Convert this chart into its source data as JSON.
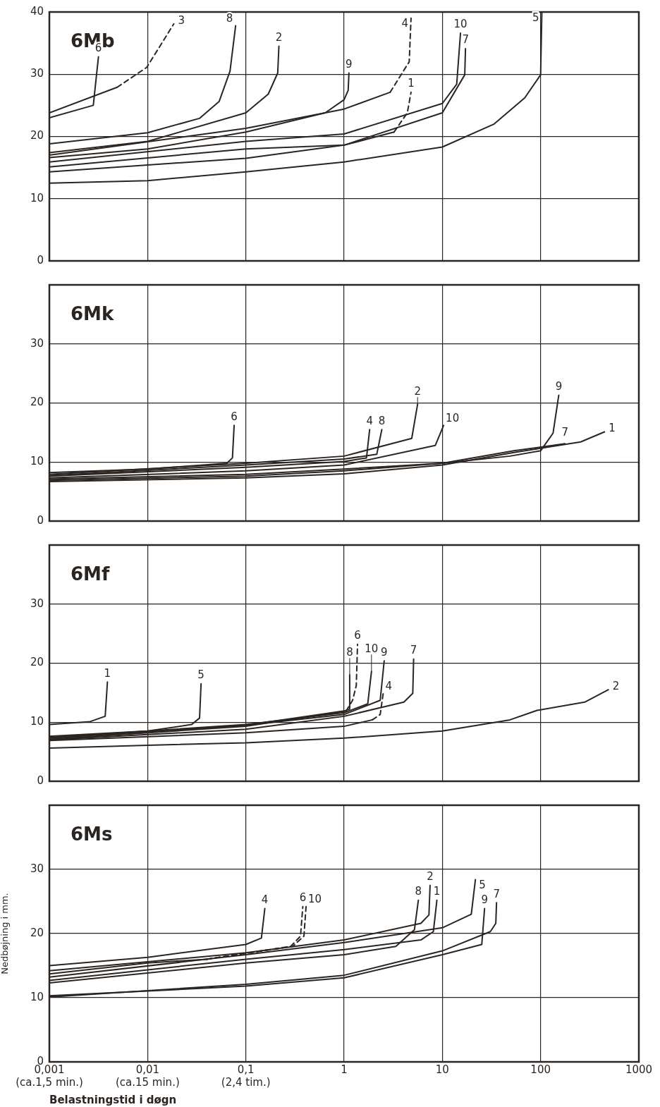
{
  "chart_data": [
    {
      "type": "line",
      "title": "6Mb",
      "log": "x",
      "grid": true,
      "tick_labels": "y",
      "marker": "none",
      "xlim": [
        0.001,
        1000
      ],
      "ylim": [
        0,
        40
      ],
      "xticks": [
        0.001,
        0.01,
        0.1,
        1,
        10,
        100,
        1000
      ],
      "yticks": [
        0,
        10,
        20,
        30,
        40
      ],
      "series": [
        {
          "name": "6",
          "color": "#2b2522",
          "line_style": "solid",
          "x": [
            0.001,
            0.0028,
            0.00316
          ],
          "values": [
            23.0,
            25.0,
            32.8
          ]
        },
        {
          "color": "#2b2522",
          "line_style": "solid",
          "x": [
            0.001,
            0.0049
          ],
          "values": [
            23.8,
            27.9
          ]
        },
        {
          "name": "3",
          "color": "#2b2522",
          "line_style": "dashed",
          "x": [
            0.0049,
            0.0098,
            0.0185
          ],
          "values": [
            27.9,
            31.1,
            38.1
          ]
        },
        {
          "name": "8",
          "color": "#2b2522",
          "line_style": "solid",
          "x": [
            0.001,
            0.01,
            0.0337,
            0.0534,
            0.069,
            0.0787
          ],
          "values": [
            18.8,
            20.6,
            22.9,
            25.6,
            30.5,
            37.8
          ]
        },
        {
          "name": "2",
          "color": "#2b2522",
          "line_style": "solid",
          "x": [
            0.001,
            0.01,
            0.1,
            0.169,
            0.211,
            0.217
          ],
          "values": [
            17.4,
            19.2,
            23.8,
            26.8,
            30.2,
            34.5
          ]
        },
        {
          "name": "9",
          "color": "#2b2522",
          "line_style": "solid",
          "x": [
            0.001,
            0.01,
            0.1,
            0.643,
            1.0,
            1.1,
            1.12
          ],
          "values": [
            16.6,
            18.0,
            20.7,
            23.8,
            25.9,
            27.4,
            30.2
          ]
        },
        {
          "color": "#2b2522",
          "line_style": "solid",
          "x": [
            0.001,
            0.1,
            1,
            2.94
          ],
          "values": [
            17.0,
            21.3,
            24.4,
            27.1
          ]
        },
        {
          "name": "4",
          "color": "#2b2522",
          "line_style": "dashed",
          "x": [
            2.94,
            4.6,
            4.8
          ],
          "values": [
            27.1,
            32.0,
            39.0
          ]
        },
        {
          "name": "10",
          "color": "#2b2522",
          "line_style": "solid",
          "x": [
            0.001,
            0.1,
            1,
            10,
            14.0,
            15.3
          ],
          "values": [
            15.9,
            19.2,
            20.4,
            25.3,
            28.4,
            36.6
          ]
        },
        {
          "name": "7",
          "color": "#2b2522",
          "line_style": "solid",
          "x": [
            0.001,
            0.1,
            1,
            10,
            16.9,
            17.2
          ],
          "values": [
            15.1,
            18.0,
            18.6,
            23.8,
            29.9,
            34.1
          ]
        },
        {
          "color": "#2b2522",
          "line_style": "solid",
          "x": [
            0.001,
            0.1,
            1,
            3.22
          ],
          "values": [
            14.3,
            16.5,
            18.6,
            20.7
          ]
        },
        {
          "name": "1",
          "color": "#2b2522",
          "line_style": "dashed",
          "x": [
            3.22,
            4.4,
            4.8
          ],
          "values": [
            20.7,
            23.8,
            27.1
          ]
        },
        {
          "name": "5",
          "color": "#2b2522",
          "line_style": "solid",
          "x": [
            0.001,
            0.01,
            0.1,
            1,
            10,
            33.7,
            69,
            100,
            103
          ],
          "values": [
            12.5,
            12.9,
            14.3,
            15.9,
            18.3,
            22.0,
            26.2,
            29.9,
            39.9
          ]
        }
      ]
    },
    {
      "type": "line",
      "title": "6Mk",
      "log": "x",
      "grid": true,
      "tick_labels": "y",
      "marker": "none",
      "xlim": [
        0.001,
        1000
      ],
      "ylim": [
        0,
        40
      ],
      "xticks": [
        0.001,
        0.01,
        0.1,
        1,
        10,
        100,
        1000
      ],
      "yticks": [
        0,
        10,
        20,
        30
      ],
      "series": [
        {
          "name": "6",
          "color": "#2b2522",
          "line_style": "solid",
          "x": [
            0.001,
            0.01,
            0.064,
            0.073,
            0.076
          ],
          "values": [
            8.2,
            8.8,
            9.8,
            10.7,
            16.2
          ]
        },
        {
          "name": "2",
          "color": "#2b2522",
          "line_style": "solid",
          "x": [
            0.001,
            0.1,
            1,
            4.88,
            5.6
          ],
          "values": [
            7.9,
            9.8,
            11.0,
            14.0,
            19.8
          ]
        },
        {
          "name": "4",
          "color": "#2b2522",
          "line_style": "solid",
          "x": [
            0.001,
            0.1,
            1,
            1.69,
            1.82
          ],
          "values": [
            7.6,
            9.1,
            10.1,
            10.7,
            15.5
          ]
        },
        {
          "name": "8",
          "color": "#2b2522",
          "line_style": "solid",
          "x": [
            0.001,
            0.1,
            1,
            2.15,
            2.42
          ],
          "values": [
            7.7,
            9.5,
            10.5,
            11.3,
            15.5
          ]
        },
        {
          "name": "10",
          "color": "#2b2522",
          "line_style": "solid",
          "x": [
            0.001,
            0.1,
            1,
            8.47,
            10.3
          ],
          "values": [
            7.3,
            8.5,
            9.5,
            12.8,
            16.2
          ]
        },
        {
          "name": "1",
          "color": "#2b2522",
          "line_style": "solid",
          "x": [
            0.001,
            0.1,
            1,
            10,
            53.5,
            256,
            447
          ],
          "values": [
            6.7,
            7.3,
            8.0,
            9.5,
            11.6,
            13.4,
            15.1
          ]
        },
        {
          "name": "7",
          "color": "#2b2522",
          "line_style": "solid",
          "x": [
            0.001,
            0.1,
            1,
            10,
            53.5,
            177
          ],
          "values": [
            6.9,
            7.6,
            8.5,
            9.8,
            11.9,
            13.1
          ]
        },
        {
          "name": "9",
          "color": "#2b2522",
          "line_style": "solid",
          "x": [
            0.001,
            0.1,
            1,
            10,
            48.8,
            100,
            134,
            153
          ],
          "values": [
            7.1,
            7.9,
            8.8,
            9.8,
            11.0,
            11.9,
            14.9,
            21.3
          ]
        }
      ]
    },
    {
      "type": "line",
      "title": "6Mf",
      "log": "x",
      "grid": true,
      "tick_labels": "y",
      "marker": "none",
      "xlim": [
        0.001,
        1000
      ],
      "ylim": [
        0,
        40
      ],
      "xticks": [
        0.001,
        0.01,
        0.1,
        1,
        10,
        100,
        1000
      ],
      "yticks": [
        0,
        10,
        20,
        30
      ],
      "series": [
        {
          "name": "1",
          "color": "#2b2522",
          "line_style": "solid",
          "x": [
            0.001,
            0.0026,
            0.0037,
            0.0039
          ],
          "values": [
            9.6,
            10.1,
            11.0,
            16.8
          ]
        },
        {
          "name": "5",
          "color": "#2b2522",
          "line_style": "solid",
          "x": [
            0.001,
            0.01,
            0.028,
            0.0338,
            0.035
          ],
          "values": [
            7.6,
            8.5,
            9.6,
            10.7,
            16.5
          ]
        },
        {
          "name": "8",
          "color": "#2b2522",
          "line_style": "solid",
          "x": [
            0.001,
            0.1,
            1,
            1.13,
            1.14
          ],
          "values": [
            7.3,
            9.5,
            11.9,
            12.2,
            18.0
          ]
        },
        {
          "color": "#2b2522",
          "line_style": "solid",
          "x": [
            0.001,
            0.1,
            1.05
          ],
          "values": [
            7.1,
            9.3,
            11.9
          ]
        },
        {
          "name": "6",
          "color": "#2b2522",
          "line_style": "dashed",
          "x": [
            1.05,
            1.22,
            1.33,
            1.37
          ],
          "values": [
            11.9,
            13.7,
            16.2,
            23.2
          ]
        },
        {
          "name": "10",
          "color": "#2b2522",
          "line_style": "solid",
          "x": [
            0.001,
            0.1,
            1,
            1.74,
            1.9
          ],
          "values": [
            7.4,
            9.6,
            11.6,
            13.1,
            18.6
          ]
        },
        {
          "name": "9",
          "color": "#2b2522",
          "line_style": "solid",
          "x": [
            0.001,
            0.1,
            1,
            2.33,
            2.56
          ],
          "values": [
            7.3,
            9.5,
            11.3,
            13.7,
            20.4
          ]
        },
        {
          "name": "7",
          "color": "#2b2522",
          "line_style": "solid",
          "x": [
            0.001,
            0.1,
            1,
            4.06,
            5.0,
            5.1
          ],
          "values": [
            7.0,
            8.8,
            11.0,
            13.4,
            14.9,
            20.7
          ]
        },
        {
          "color": "#2b2522",
          "line_style": "solid",
          "x": [
            0.001,
            0.1,
            1,
            1.94
          ],
          "values": [
            6.9,
            8.2,
            9.3,
            10.4
          ]
        },
        {
          "name": "4",
          "color": "#2b2522",
          "line_style": "dashed",
          "x": [
            1.94,
            2.33,
            2.5
          ],
          "values": [
            10.4,
            11.3,
            14.9
          ]
        },
        {
          "name": "2",
          "color": "#2b2522",
          "line_style": "solid",
          "x": [
            0.001,
            0.01,
            0.1,
            1,
            10,
            48.8,
            92,
            281,
            490
          ],
          "values": [
            5.6,
            6.1,
            6.5,
            7.3,
            8.5,
            10.4,
            12.0,
            13.4,
            15.5
          ]
        }
      ]
    },
    {
      "type": "line",
      "title": "6Ms",
      "xlabel": "Belastningstid i døgn",
      "ylabel": "Nedbøjning i mm.",
      "log": "x",
      "grid": true,
      "marker": "none",
      "xlim": [
        0.001,
        1000
      ],
      "ylim": [
        0,
        40
      ],
      "xticks": [
        {
          "value": 0.001,
          "label": "0,001\n(ca.1,5 min.)"
        },
        {
          "value": 0.01,
          "label": "0,01\n(ca.15 min.)"
        },
        {
          "value": 0.1,
          "label": "0,1\n(2,4 tim.)"
        },
        {
          "value": 1,
          "label": "1"
        },
        {
          "value": 10,
          "label": "10"
        },
        {
          "value": 100,
          "label": "100"
        },
        {
          "value": 1000,
          "label": "1000"
        }
      ],
      "yticks": [
        0,
        10,
        20,
        30
      ],
      "series": [
        {
          "name": "4",
          "color": "#2b2522",
          "line_style": "solid",
          "x": [
            0.001,
            0.01,
            0.1,
            0.144,
            0.156
          ],
          "values": [
            15.0,
            16.3,
            18.3,
            19.3,
            23.9
          ]
        },
        {
          "name": "2",
          "color": "#2b2522",
          "line_style": "solid",
          "x": [
            0.001,
            0.1,
            1,
            6.05,
            7.3,
            7.5
          ],
          "values": [
            14.2,
            17.0,
            19.0,
            21.6,
            22.9,
            27.5
          ]
        },
        {
          "color": "#2b2522",
          "line_style": "solid",
          "x": [
            0.001,
            0.01,
            0.04
          ],
          "values": [
            13.7,
            15.4,
            16.0
          ]
        },
        {
          "name": "6",
          "color": "#2b2522",
          "line_style": "dashed",
          "x": [
            0.04,
            0.286,
            0.36,
            0.38
          ],
          "values": [
            16.0,
            18.0,
            19.6,
            24.2
          ]
        },
        {
          "name": "10",
          "color": "#2b2522",
          "line_style": "dashed",
          "x": [
            0.04,
            0.3,
            0.39,
            0.41
          ],
          "values": [
            16.0,
            18.0,
            19.6,
            24.2
          ]
        },
        {
          "name": "5",
          "color": "#2b2522",
          "line_style": "solid",
          "x": [
            0.001,
            0.1,
            1,
            10,
            19.7,
            21.7
          ],
          "values": [
            13.2,
            16.7,
            18.6,
            20.9,
            23.0,
            28.4
          ]
        },
        {
          "name": "1",
          "color": "#2b2522",
          "line_style": "solid",
          "x": [
            0.001,
            0.1,
            1,
            6.05,
            8.1,
            8.8
          ],
          "values": [
            12.7,
            16.0,
            17.5,
            19.0,
            20.3,
            25.2
          ]
        },
        {
          "name": "8",
          "color": "#2b2522",
          "line_style": "solid",
          "x": [
            0.001,
            0.1,
            1,
            3.36,
            5.2,
            5.7
          ],
          "values": [
            12.3,
            15.4,
            16.7,
            18.0,
            20.6,
            25.2
          ]
        },
        {
          "name": "9",
          "color": "#2b2522",
          "line_style": "solid",
          "x": [
            0.001,
            0.1,
            1,
            10,
            25.2,
            26.9
          ],
          "values": [
            10.3,
            11.8,
            13.1,
            16.7,
            18.3,
            23.9
          ]
        },
        {
          "name": "7",
          "color": "#2b2522",
          "line_style": "solid",
          "x": [
            0.001,
            0.1,
            1,
            10,
            30.8,
            35,
            35.6
          ],
          "values": [
            10.1,
            12.1,
            13.5,
            17.3,
            20.3,
            21.6,
            24.8
          ]
        }
      ]
    }
  ]
}
